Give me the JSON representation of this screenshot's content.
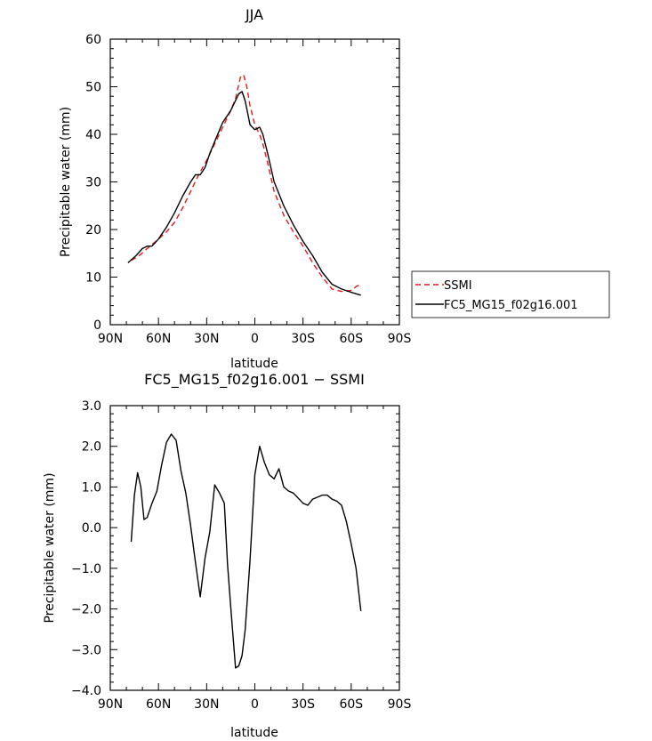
{
  "chart_data": [
    {
      "type": "line",
      "title": "JJA",
      "xlabel": "latitude",
      "ylabel": "Precipitable water (mm)",
      "xlim": [
        90,
        -90
      ],
      "ylim": [
        0,
        60
      ],
      "x_ticks": [
        90,
        60,
        30,
        0,
        -30,
        -60,
        -90
      ],
      "x_tick_labels": [
        "90N",
        "60N",
        "30N",
        "0",
        "30S",
        "60S",
        "90S"
      ],
      "y_ticks": [
        0,
        10,
        20,
        30,
        40,
        50,
        60
      ],
      "y_tick_labels": [
        "0",
        "10",
        "20",
        "30",
        "40",
        "50",
        "60"
      ],
      "legend_position": "right",
      "series": [
        {
          "name": "SSMI",
          "color": "#e41a1c",
          "style": "dashed",
          "x": [
            77,
            72,
            67,
            60,
            55,
            50,
            45,
            40,
            35,
            30,
            25,
            20,
            15,
            12,
            9,
            7,
            5,
            3,
            0,
            -3,
            -5,
            -8,
            -12,
            -18,
            -24,
            -30,
            -36,
            -42,
            -48,
            -54,
            -60,
            -63,
            -66
          ],
          "y": [
            13.5,
            14.5,
            16,
            18,
            19.5,
            21.5,
            24.5,
            28,
            31.5,
            34.5,
            38,
            41.5,
            45,
            47.5,
            52,
            52.5,
            50,
            46,
            42,
            40,
            38,
            34,
            28,
            23,
            19.5,
            16.5,
            13,
            10,
            7.5,
            7,
            7.2,
            8,
            8.5
          ]
        },
        {
          "name": "FC5_MG15_f02g16.001",
          "color": "#000000",
          "style": "solid",
          "x": [
            79,
            74,
            70,
            67,
            64,
            60,
            55,
            50,
            45,
            40,
            37,
            34,
            31,
            28,
            25,
            20,
            15,
            10,
            8,
            6,
            3,
            0,
            -3,
            -5,
            -8,
            -12,
            -18,
            -24,
            -30,
            -36,
            -42,
            -48,
            -54,
            -60,
            -64,
            -66
          ],
          "y": [
            13,
            14.5,
            16,
            16.5,
            16.5,
            18,
            20.5,
            23.5,
            27,
            30,
            31.5,
            31.5,
            33,
            36,
            38.5,
            42.5,
            45,
            48.5,
            49,
            47,
            42,
            41,
            41.5,
            40,
            36,
            30,
            25,
            21,
            17.5,
            14.5,
            11,
            8.5,
            7.5,
            6.8,
            6.4,
            6.2
          ]
        }
      ]
    },
    {
      "type": "line",
      "title": "FC5_MG15_f02g16.001 − SSMI",
      "xlabel": "latitude",
      "ylabel": "Precipitable water (mm)",
      "xlim": [
        90,
        -90
      ],
      "ylim": [
        -4.0,
        3.0
      ],
      "x_ticks": [
        90,
        60,
        30,
        0,
        -30,
        -60,
        -90
      ],
      "x_tick_labels": [
        "90N",
        "60N",
        "30N",
        "0",
        "30S",
        "60S",
        "90S"
      ],
      "y_ticks": [
        3.0,
        2.0,
        1.0,
        0.0,
        -1.0,
        -2.0,
        -3.0,
        -4.0
      ],
      "y_tick_labels": [
        "3.0",
        "2.0",
        "1.0",
        "0.0",
        "−1.0",
        "−2.0",
        "−3.0",
        "−4.0"
      ],
      "series": [
        {
          "color": "#000000",
          "style": "solid",
          "x": [
            77,
            75,
            73,
            71,
            69,
            67,
            64,
            61,
            58,
            55,
            52,
            49,
            46,
            43,
            40,
            37,
            34,
            31,
            28,
            25,
            22,
            19,
            17,
            15,
            12,
            10,
            8,
            6,
            3,
            0,
            -3,
            -6,
            -9,
            -12,
            -15,
            -18,
            -21,
            -24,
            -30,
            -33,
            -36,
            -39,
            -42,
            -45,
            -48,
            -51,
            -54,
            -57,
            -60,
            -63,
            -66
          ],
          "y": [
            -0.35,
            0.8,
            1.35,
            1.0,
            0.2,
            0.25,
            0.6,
            0.9,
            1.55,
            2.1,
            2.3,
            2.15,
            1.4,
            0.85,
            0.05,
            -0.85,
            -1.7,
            -0.75,
            -0.1,
            1.05,
            0.85,
            0.6,
            -0.9,
            -1.95,
            -3.45,
            -3.4,
            -3.15,
            -2.5,
            -0.8,
            1.3,
            2.0,
            1.6,
            1.3,
            1.2,
            1.45,
            1.0,
            0.9,
            0.85,
            0.6,
            0.55,
            0.7,
            0.75,
            0.8,
            0.8,
            0.7,
            0.65,
            0.55,
            0.15,
            -0.4,
            -1.0,
            -2.05
          ]
        }
      ]
    }
  ]
}
